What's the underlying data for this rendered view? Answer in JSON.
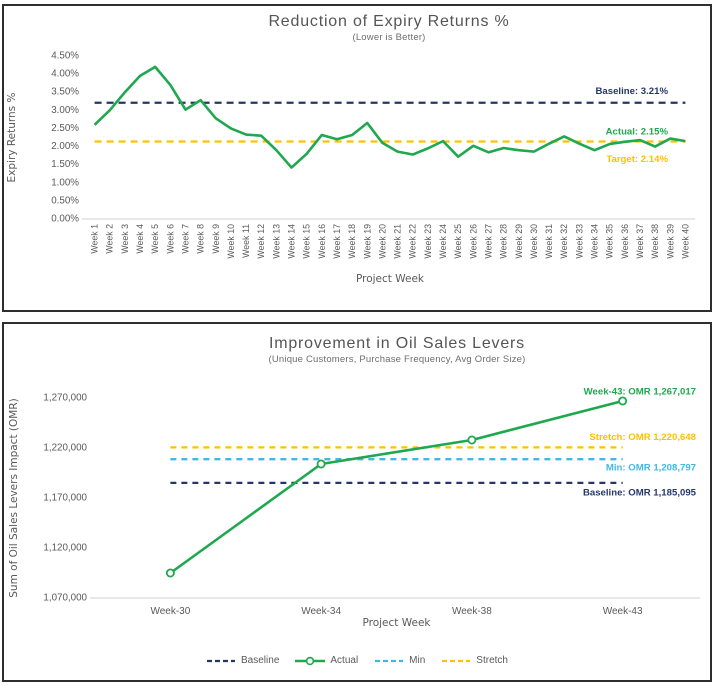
{
  "colors": {
    "green": "#1fa84e",
    "navy": "#24376b",
    "gold": "#ffc000",
    "lightBlue": "#3fb9e5",
    "axisText": "#595959",
    "axisLine": "#d9d9d9",
    "panelBorder": "#2e2e2e"
  },
  "chart_data": [
    {
      "type": "line",
      "title": "Reduction of Expiry Returns %",
      "subtitle": "(Lower is Better)",
      "xlabel": "Project Week",
      "ylabel": "Expiry Returns %",
      "ylim": [
        0,
        4.5
      ],
      "grid": false,
      "yticks": [
        {
          "v": 4.5,
          "label": "4.50%"
        },
        {
          "v": 4.0,
          "label": "4.00%"
        },
        {
          "v": 3.5,
          "label": "3.50%"
        },
        {
          "v": 3.0,
          "label": "3.00%"
        },
        {
          "v": 2.5,
          "label": "2.50%"
        },
        {
          "v": 2.0,
          "label": "2.00%"
        },
        {
          "v": 1.5,
          "label": "1.50%"
        },
        {
          "v": 1.0,
          "label": "1.00%"
        },
        {
          "v": 0.5,
          "label": "0.50%"
        },
        {
          "v": 0.0,
          "label": "0.00%"
        }
      ],
      "categories": [
        "Week 1",
        "Week 2",
        "Week 3",
        "Week 4",
        "Week 5",
        "Week 6",
        "Week 7",
        "Week 8",
        "Week 9",
        "Week 10",
        "Week 11",
        "Week 12",
        "Week 13",
        "Week 14",
        "Week 15",
        "Week 16",
        "Week 17",
        "Week 18",
        "Week 19",
        "Week 20",
        "Week 21",
        "Week 22",
        "Week 23",
        "Week 24",
        "Week 25",
        "Week 26",
        "Week 27",
        "Week 28",
        "Week 29",
        "Week 30",
        "Week 31",
        "Week 32",
        "Week 33",
        "Week 34",
        "Week 35",
        "Week 36",
        "Week 37",
        "Week 38",
        "Week 39",
        "Week 40"
      ],
      "series": [
        {
          "name": "Actual",
          "color": "green",
          "values": [
            2.6,
            3.0,
            3.5,
            3.95,
            4.2,
            3.7,
            3.02,
            3.28,
            2.78,
            2.5,
            2.33,
            2.3,
            1.9,
            1.42,
            1.8,
            2.32,
            2.2,
            2.32,
            2.65,
            2.1,
            1.86,
            1.78,
            1.95,
            2.15,
            1.72,
            2.02,
            1.84,
            1.96,
            1.9,
            1.86,
            2.08,
            2.28,
            2.08,
            1.9,
            2.07,
            2.13,
            2.18,
            2.0,
            2.22,
            2.15
          ]
        },
        {
          "name": "Baseline",
          "color": "navy",
          "constant": 3.21,
          "dashed": true
        },
        {
          "name": "Target",
          "color": "gold",
          "constant": 2.14,
          "dashed": true
        }
      ],
      "annotations": [
        {
          "name": "baseline",
          "text": "Baseline: 3.21%",
          "color": "navy",
          "value": 3.21
        },
        {
          "name": "actual",
          "text": "Actual: 2.15%",
          "color": "green",
          "value": 2.15
        },
        {
          "name": "target",
          "text": "Target: 2.14%",
          "color": "gold",
          "value": 2.14
        }
      ]
    },
    {
      "type": "line",
      "title": "Improvement in Oil Sales Levers",
      "subtitle": "(Unique Customers, Purchase Frequency, Avg Order Size)",
      "xlabel": "Project Week",
      "ylabel": "Sum of Oil Sales Levers Impact (OMR)",
      "ylim": [
        1070000,
        1270000
      ],
      "grid": false,
      "yticks": [
        {
          "v": 1270000,
          "label": "1,270,000"
        },
        {
          "v": 1220000,
          "label": "1,220,000"
        },
        {
          "v": 1170000,
          "label": "1,170,000"
        },
        {
          "v": 1120000,
          "label": "1,120,000"
        },
        {
          "v": 1070000,
          "label": "1,070,000"
        }
      ],
      "categories": [
        "Week-30",
        "Week-34",
        "Week-38",
        "Week-43"
      ],
      "series": [
        {
          "name": "Baseline",
          "color": "navy",
          "constant": 1185095,
          "dashed": true
        },
        {
          "name": "Actual",
          "color": "green",
          "marker": "circle",
          "values": [
            1095000,
            1204000,
            1228000,
            1267017
          ]
        },
        {
          "name": "Min",
          "color": "lightBlue",
          "constant": 1208797,
          "dashed": true
        },
        {
          "name": "Stretch",
          "color": "gold",
          "constant": 1220648,
          "dashed": true
        }
      ],
      "annotations": [
        {
          "name": "week-43",
          "text": "Week-43: OMR 1,267,017",
          "color": "green",
          "value": 1267017
        },
        {
          "name": "stretch",
          "text": "Stretch: OMR 1,220,648",
          "color": "gold",
          "value": 1220648
        },
        {
          "name": "min",
          "text": "Min: OMR 1,208,797",
          "color": "lightBlue",
          "value": 1208797
        },
        {
          "name": "baseline",
          "text": "Baseline: OMR 1,185,095",
          "color": "navy",
          "value": 1185095
        }
      ],
      "legend_items": [
        {
          "label": "Baseline",
          "color": "navy",
          "style": "dashed"
        },
        {
          "label": "Actual",
          "color": "green",
          "style": "line-marker"
        },
        {
          "label": "Min",
          "color": "lightBlue",
          "style": "dashed"
        },
        {
          "label": "Stretch",
          "color": "gold",
          "style": "dashed"
        }
      ],
      "legend_position": "bottom"
    }
  ]
}
